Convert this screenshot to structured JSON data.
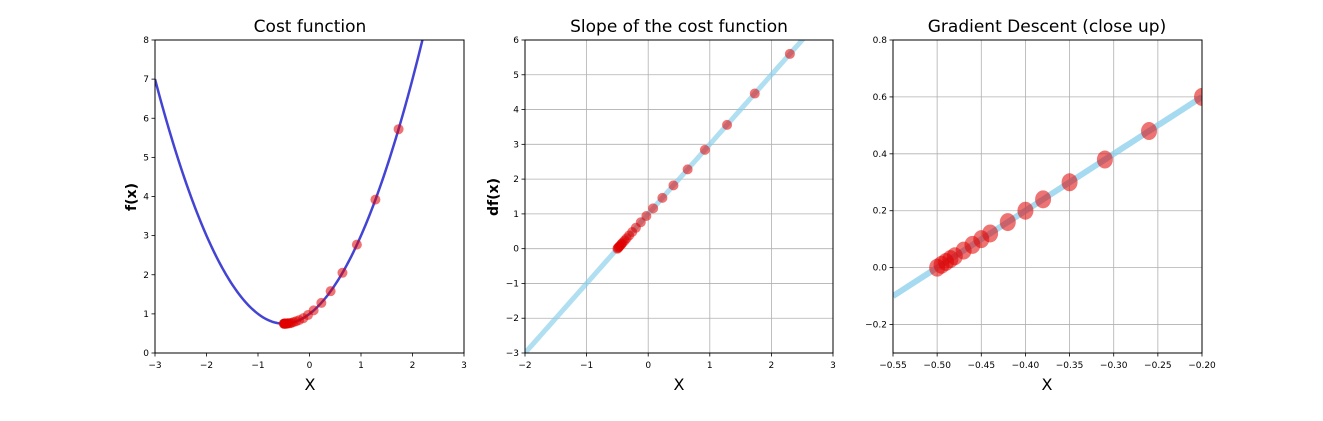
{
  "chart_data": [
    {
      "type": "line",
      "title": "Cost function",
      "xlabel": "X",
      "ylabel": "f(x)",
      "xlim": [
        -3,
        3
      ],
      "ylim": [
        0,
        8
      ],
      "xticks": [
        -3,
        -2,
        -1,
        0,
        1,
        2,
        3
      ],
      "yticks": [
        0,
        1,
        2,
        3,
        4,
        5,
        6,
        7,
        8
      ],
      "grid": false,
      "curve": {
        "function": "x^2 + x + 1",
        "color": "#2222cc"
      },
      "points": {
        "color": "#e00000",
        "x": [
          1.73,
          1.28,
          0.92,
          0.64,
          0.41,
          0.23,
          0.08,
          -0.03,
          -0.12,
          -0.2,
          -0.26,
          -0.31,
          -0.35,
          -0.38,
          -0.41,
          -0.43,
          -0.44,
          -0.46,
          -0.47,
          -0.48,
          -0.48,
          -0.49,
          -0.49,
          -0.5
        ],
        "y": [
          5.72,
          3.92,
          2.77,
          2.05,
          1.58,
          1.28,
          1.09,
          0.97,
          0.89,
          0.84,
          0.81,
          0.79,
          0.77,
          0.76,
          0.76,
          0.76,
          0.75,
          0.75,
          0.75,
          0.75,
          0.75,
          0.75,
          0.75,
          0.75
        ]
      }
    },
    {
      "type": "line",
      "title": "Slope of the cost function",
      "xlabel": "X",
      "ylabel": "df(x)",
      "xlim": [
        -2,
        3
      ],
      "ylim": [
        -3,
        6
      ],
      "xticks": [
        -2,
        -1,
        0,
        1,
        2,
        3
      ],
      "yticks": [
        -3,
        -2,
        -1,
        0,
        1,
        2,
        3,
        4,
        5,
        6
      ],
      "grid": true,
      "curve": {
        "function": "2x + 1",
        "color": "#87ceeb"
      },
      "points": {
        "color": "#e00000",
        "x": [
          2.3,
          1.73,
          1.28,
          0.92,
          0.64,
          0.41,
          0.23,
          0.08,
          -0.03,
          -0.12,
          -0.2,
          -0.26,
          -0.31,
          -0.35,
          -0.38,
          -0.41,
          -0.43,
          -0.44,
          -0.46,
          -0.47,
          -0.48,
          -0.49,
          -0.5
        ],
        "y": [
          5.6,
          4.46,
          3.56,
          2.84,
          2.28,
          1.82,
          1.46,
          1.16,
          0.94,
          0.76,
          0.6,
          0.48,
          0.38,
          0.3,
          0.24,
          0.18,
          0.14,
          0.12,
          0.08,
          0.06,
          0.04,
          0.02,
          0.0
        ]
      }
    },
    {
      "type": "line",
      "title": "Gradient Descent (close up)",
      "xlabel": "X",
      "ylabel": "",
      "xlim": [
        -0.55,
        -0.2
      ],
      "ylim": [
        -0.3,
        0.8
      ],
      "xticks": [
        -0.55,
        -0.5,
        -0.45,
        -0.4,
        -0.35,
        -0.3,
        -0.25,
        -0.2
      ],
      "yticks": [
        -0.2,
        0.0,
        0.2,
        0.4,
        0.6,
        0.8
      ],
      "grid": true,
      "curve": {
        "function": "2x + 1",
        "color": "#87ceeb"
      },
      "points": {
        "color": "#e00000",
        "x": [
          -0.2,
          -0.26,
          -0.31,
          -0.35,
          -0.38,
          -0.4,
          -0.42,
          -0.44,
          -0.45,
          -0.46,
          -0.47,
          -0.48,
          -0.485,
          -0.49,
          -0.495,
          -0.5
        ],
        "y": [
          0.6,
          0.48,
          0.38,
          0.3,
          0.24,
          0.2,
          0.16,
          0.12,
          0.1,
          0.08,
          0.06,
          0.04,
          0.03,
          0.02,
          0.01,
          0.0
        ]
      }
    }
  ]
}
